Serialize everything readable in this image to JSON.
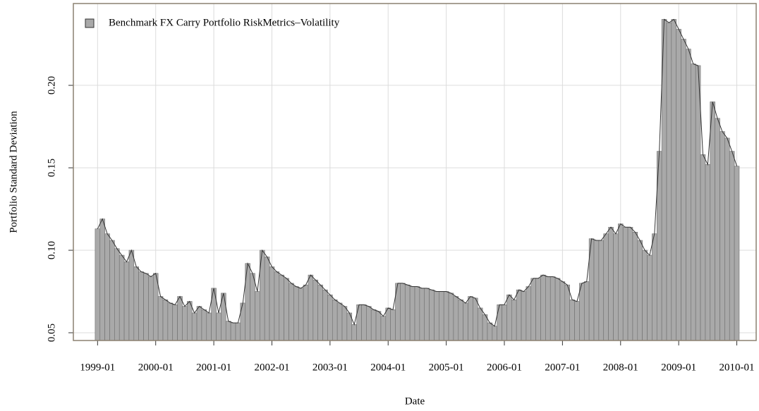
{
  "chart_data": {
    "type": "bar",
    "legend_label": "Benchmark FX Carry Portfolio RiskMetrics–Volatility",
    "xlabel": "Date",
    "ylabel": "Portfolio Standard Deviation",
    "color": "#a9a9a9",
    "line_color": "#333333",
    "grid": true,
    "legend": "top-left",
    "x": [
      "1999-01",
      "1999-02",
      "1999-03",
      "1999-04",
      "1999-05",
      "1999-06",
      "1999-07",
      "1999-08",
      "1999-09",
      "1999-10",
      "1999-11",
      "1999-12",
      "2000-01",
      "2000-02",
      "2000-03",
      "2000-04",
      "2000-05",
      "2000-06",
      "2000-07",
      "2000-08",
      "2000-09",
      "2000-10",
      "2000-11",
      "2000-12",
      "2001-01",
      "2001-02",
      "2001-03",
      "2001-04",
      "2001-05",
      "2001-06",
      "2001-07",
      "2001-08",
      "2001-09",
      "2001-10",
      "2001-11",
      "2001-12",
      "2002-01",
      "2002-02",
      "2002-03",
      "2002-04",
      "2002-05",
      "2002-06",
      "2002-07",
      "2002-08",
      "2002-09",
      "2002-10",
      "2002-11",
      "2002-12",
      "2003-01",
      "2003-02",
      "2003-03",
      "2003-04",
      "2003-05",
      "2003-06",
      "2003-07",
      "2003-08",
      "2003-09",
      "2003-10",
      "2003-11",
      "2003-12",
      "2004-01",
      "2004-02",
      "2004-03",
      "2004-04",
      "2004-05",
      "2004-06",
      "2004-07",
      "2004-08",
      "2004-09",
      "2004-10",
      "2004-11",
      "2004-12",
      "2005-01",
      "2005-02",
      "2005-03",
      "2005-04",
      "2005-05",
      "2005-06",
      "2005-07",
      "2005-08",
      "2005-09",
      "2005-10",
      "2005-11",
      "2005-12",
      "2006-01",
      "2006-02",
      "2006-03",
      "2006-04",
      "2006-05",
      "2006-06",
      "2006-07",
      "2006-08",
      "2006-09",
      "2006-10",
      "2006-11",
      "2006-12",
      "2007-01",
      "2007-02",
      "2007-03",
      "2007-04",
      "2007-05",
      "2007-06",
      "2007-07",
      "2007-08",
      "2007-09",
      "2007-10",
      "2007-11",
      "2007-12",
      "2008-01",
      "2008-02",
      "2008-03",
      "2008-04",
      "2008-05",
      "2008-06",
      "2008-07",
      "2008-08",
      "2008-09",
      "2008-10",
      "2008-11",
      "2008-12",
      "2009-01",
      "2009-02",
      "2009-03",
      "2009-04",
      "2009-05",
      "2009-06",
      "2009-07",
      "2009-08",
      "2009-09",
      "2009-10",
      "2009-11",
      "2009-12",
      "2010-01"
    ],
    "values": [
      0.113,
      0.119,
      0.11,
      0.106,
      0.101,
      0.097,
      0.093,
      0.1,
      0.09,
      0.087,
      0.086,
      0.084,
      0.086,
      0.072,
      0.07,
      0.068,
      0.067,
      0.072,
      0.066,
      0.069,
      0.062,
      0.066,
      0.064,
      0.062,
      0.077,
      0.062,
      0.074,
      0.057,
      0.056,
      0.056,
      0.068,
      0.092,
      0.086,
      0.075,
      0.1,
      0.096,
      0.09,
      0.087,
      0.085,
      0.083,
      0.08,
      0.078,
      0.077,
      0.079,
      0.085,
      0.082,
      0.079,
      0.076,
      0.073,
      0.07,
      0.068,
      0.066,
      0.062,
      0.055,
      0.067,
      0.067,
      0.066,
      0.064,
      0.063,
      0.06,
      0.065,
      0.064,
      0.08,
      0.08,
      0.079,
      0.078,
      0.078,
      0.077,
      0.077,
      0.076,
      0.075,
      0.075,
      0.075,
      0.074,
      0.072,
      0.07,
      0.068,
      0.072,
      0.071,
      0.065,
      0.061,
      0.056,
      0.054,
      0.067,
      0.067,
      0.073,
      0.07,
      0.076,
      0.075,
      0.078,
      0.083,
      0.083,
      0.085,
      0.084,
      0.084,
      0.083,
      0.081,
      0.079,
      0.07,
      0.069,
      0.08,
      0.081,
      0.107,
      0.106,
      0.106,
      0.11,
      0.114,
      0.11,
      0.116,
      0.114,
      0.114,
      0.111,
      0.106,
      0.1,
      0.097,
      0.11,
      0.16,
      0.24,
      0.238,
      0.24,
      0.234,
      0.228,
      0.222,
      0.213,
      0.212,
      0.158,
      0.152,
      0.19,
      0.18,
      0.172,
      0.168,
      0.16,
      0.151
    ],
    "xlim": [
      "1998-08",
      "2010-05"
    ],
    "xticks": [
      "1999-01",
      "2000-01",
      "2001-01",
      "2002-01",
      "2003-01",
      "2004-01",
      "2005-01",
      "2006-01",
      "2007-01",
      "2008-01",
      "2009-01",
      "2010-01"
    ],
    "ylim": [
      0.0453,
      0.2496
    ],
    "yticks": [
      0.05,
      {
        "value": 0.1,
        "label": "0.10"
      },
      0.15,
      {
        "value": 0.2,
        "label": "0.20"
      }
    ]
  }
}
